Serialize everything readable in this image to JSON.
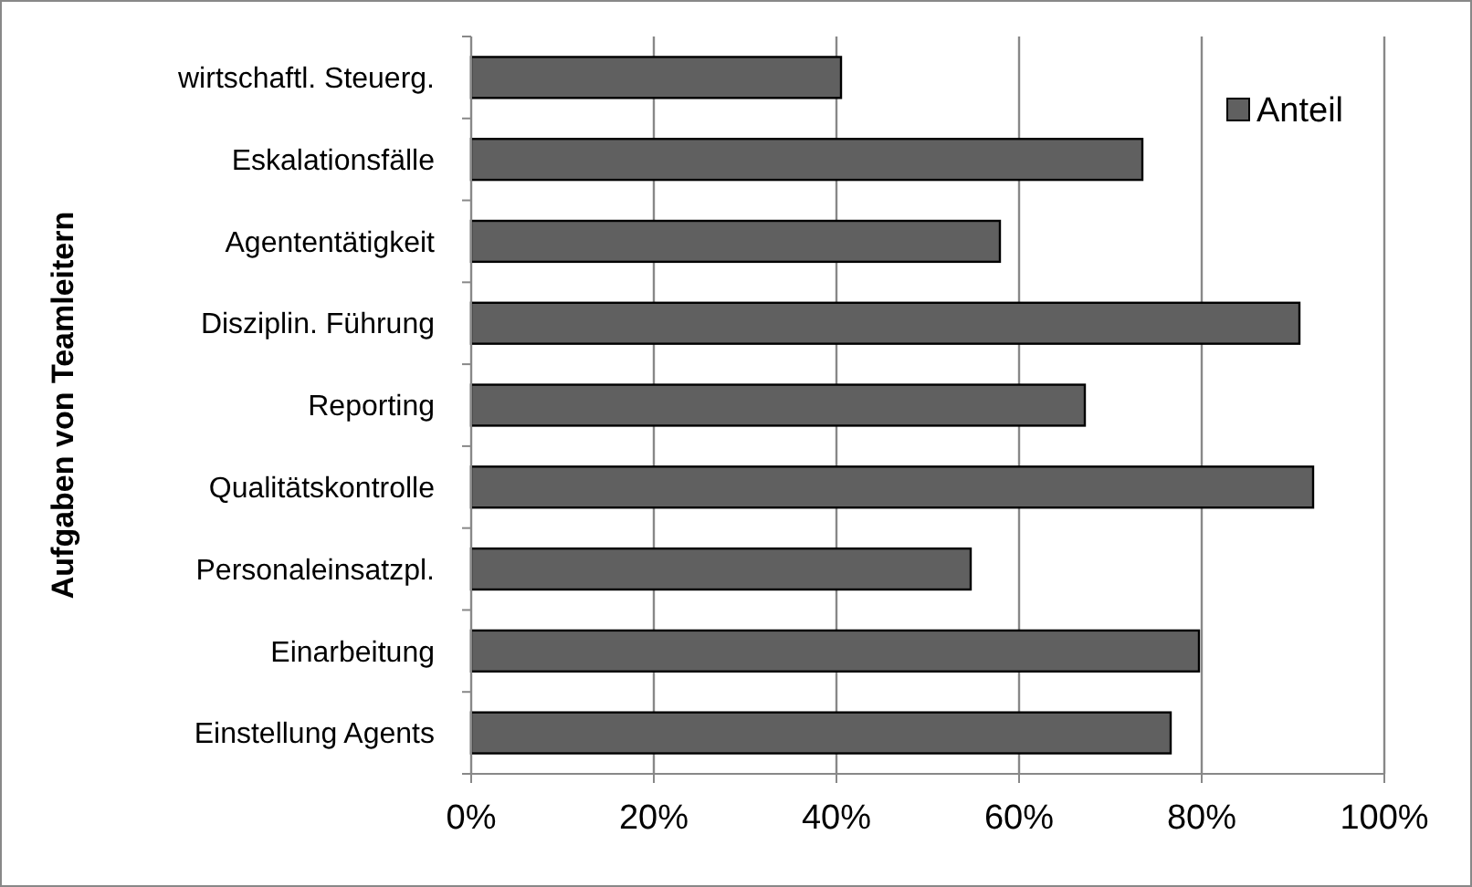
{
  "chart_data": {
    "type": "bar",
    "orientation": "horizontal",
    "ylabel": "Aufgaben von Teamleitern",
    "categories": [
      "wirtschaftl. Steuerg.",
      "Eskalationsfälle",
      "Agententätigkeit",
      "Disziplin. Führung",
      "Reporting",
      "Qualitätskontrolle",
      "Personaleinsatzpl.",
      "Einarbeitung",
      "Einstellung Agents"
    ],
    "series": [
      {
        "name": "Anteil",
        "color": "#606060",
        "values": [
          40.5,
          73.5,
          57.9,
          90.7,
          67.2,
          92.2,
          54.7,
          79.7,
          76.6
        ]
      }
    ],
    "xlim": [
      0,
      100
    ],
    "xticks": [
      {
        "value": 0,
        "label": "0%"
      },
      {
        "value": 20,
        "label": "20%"
      },
      {
        "value": 40,
        "label": "40%"
      },
      {
        "value": 60,
        "label": "60%"
      },
      {
        "value": 80,
        "label": "80%"
      },
      {
        "value": 100,
        "label": "100%"
      }
    ],
    "grid": "x",
    "legend": "top right"
  }
}
